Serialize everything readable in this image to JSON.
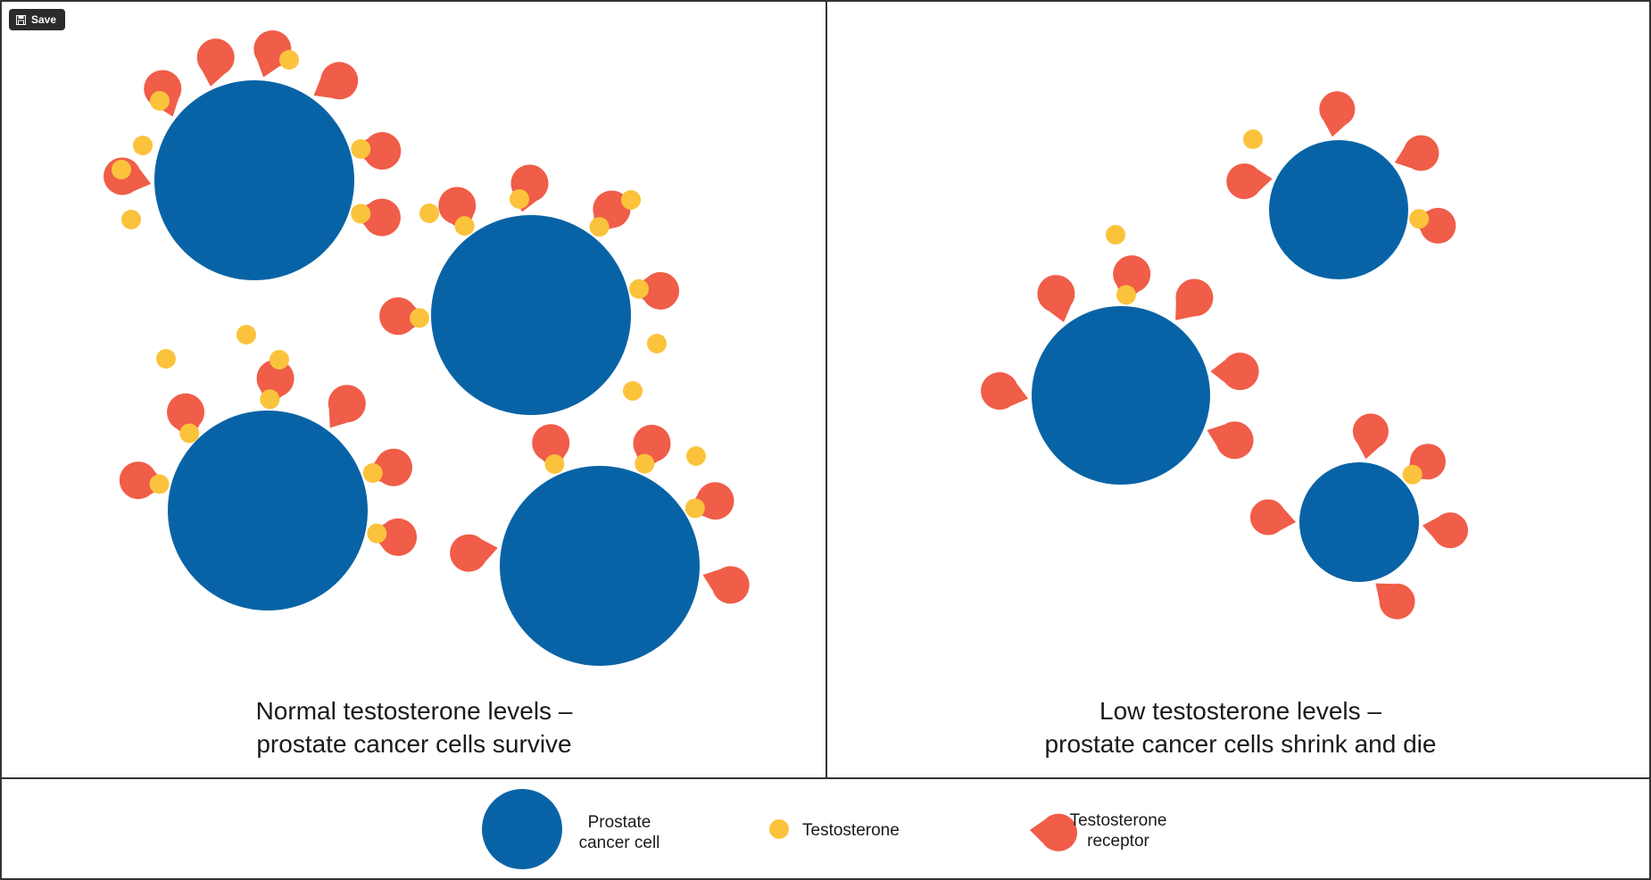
{
  "toolbar": {
    "save_label": "Save",
    "save_icon": "save-icon"
  },
  "panels": [
    {
      "caption_line1": "Normal testosterone levels –",
      "caption_line2": "prostate cancer cells survive"
    },
    {
      "caption_line1": "Low testosterone levels –",
      "caption_line2": "prostate cancer cells shrink and die"
    }
  ],
  "legend": {
    "cell_line1": "Prostate",
    "cell_line2": "cancer cell",
    "testosterone": "Testosterone",
    "receptor_line1": "Testosterone",
    "receptor_line2": "receptor"
  },
  "colors": {
    "cell": "#0863a6",
    "receptor": "#f05d48",
    "testosterone": "#fbc33c",
    "border": "#333333",
    "text": "#1a1a1a"
  }
}
